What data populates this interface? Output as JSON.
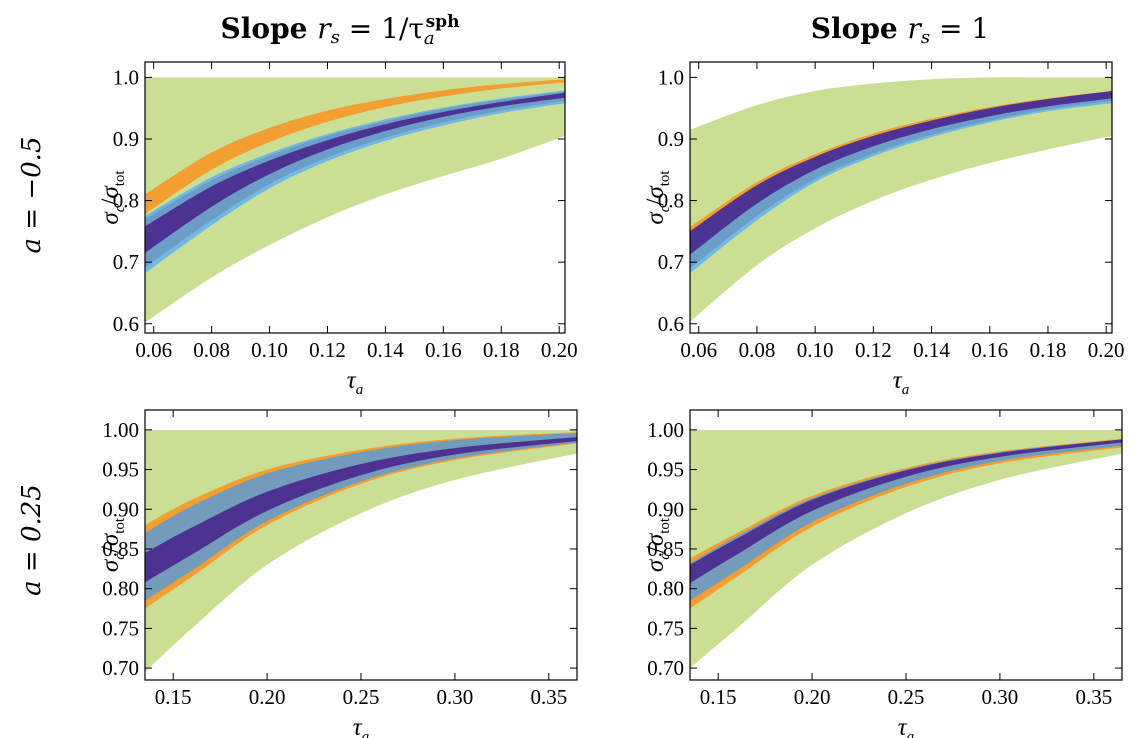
{
  "column_titles": [
    {
      "prefix": "Slope ",
      "expr": "r",
      "expr_sub": "s",
      "eq": " = 1/τ",
      "sub": "a",
      "sup": "sph"
    },
    {
      "prefix": "Slope ",
      "expr": "r",
      "expr_sub": "s",
      "eq": " = 1",
      "sub": "",
      "sup": ""
    }
  ],
  "row_labels": [
    "a = −0.5",
    "a = 0.25"
  ],
  "colors": {
    "green": "#c8dd8e",
    "orange": "#f39a2a",
    "lightblue": "#6cb5e8",
    "steelblue": "#6a9bc4",
    "purple": "#4b2c8f"
  },
  "chart_data": [
    {
      "type": "area",
      "panel": "a=-0.5, slope 1/tau_a^sph",
      "xlabel": "τ_a",
      "ylabel": "σ_c/σ_tot",
      "xlim": [
        0.057,
        0.202
      ],
      "ylim": [
        0.585,
        1.025
      ],
      "xticks": [
        "0.06",
        "0.08",
        "0.10",
        "0.12",
        "0.14",
        "0.16",
        "0.18",
        "0.20"
      ],
      "yticks": [
        "0.6",
        "0.7",
        "0.8",
        "0.9",
        "1.0"
      ],
      "x": [
        0.057,
        0.08,
        0.1,
        0.12,
        0.14,
        0.16,
        0.18,
        0.202
      ],
      "bands": [
        {
          "color": "green",
          "lower": [
            0.602,
            0.675,
            0.728,
            0.773,
            0.81,
            0.84,
            0.868,
            0.905
          ],
          "upper": [
            1.0,
            1.0,
            1.0,
            1.0,
            1.0,
            1.0,
            1.0,
            1.0
          ]
        },
        {
          "color": "orange",
          "lower": [
            0.778,
            0.85,
            0.895,
            0.928,
            0.952,
            0.969,
            0.982,
            0.992
          ],
          "upper": [
            0.81,
            0.878,
            0.918,
            0.946,
            0.965,
            0.979,
            0.989,
            0.997
          ]
        },
        {
          "color": "lightblue",
          "lower": [
            0.682,
            0.76,
            0.82,
            0.864,
            0.897,
            0.922,
            0.942,
            0.958
          ],
          "upper": [
            0.775,
            0.838,
            0.877,
            0.908,
            0.932,
            0.951,
            0.966,
            0.979
          ]
        },
        {
          "color": "steelblue",
          "lower": [
            0.692,
            0.768,
            0.827,
            0.87,
            0.902,
            0.927,
            0.946,
            0.962
          ],
          "upper": [
            0.77,
            0.833,
            0.873,
            0.905,
            0.929,
            0.949,
            0.964,
            0.977
          ]
        },
        {
          "color": "purple",
          "lower": [
            0.715,
            0.79,
            0.843,
            0.883,
            0.913,
            0.936,
            0.953,
            0.967
          ],
          "upper": [
            0.758,
            0.823,
            0.865,
            0.898,
            0.924,
            0.944,
            0.96,
            0.975
          ]
        }
      ]
    },
    {
      "type": "area",
      "panel": "a=-0.5, slope 1",
      "xlabel": "τ_a",
      "ylabel": "σ_c/σ_tot",
      "xlim": [
        0.057,
        0.202
      ],
      "ylim": [
        0.585,
        1.025
      ],
      "xticks": [
        "0.06",
        "0.08",
        "0.10",
        "0.12",
        "0.14",
        "0.16",
        "0.18",
        "0.20"
      ],
      "yticks": [
        "0.6",
        "0.7",
        "0.8",
        "0.9",
        "1.0"
      ],
      "x": [
        0.057,
        0.08,
        0.1,
        0.12,
        0.14,
        0.16,
        0.18,
        0.202
      ],
      "bands": [
        {
          "color": "green",
          "lower": [
            0.603,
            0.695,
            0.755,
            0.8,
            0.834,
            0.861,
            0.883,
            0.905
          ],
          "upper": [
            0.915,
            0.955,
            0.978,
            0.99,
            0.997,
            1.0,
            1.0,
            1.0
          ]
        },
        {
          "color": "orange",
          "lower": [
            0.745,
            0.82,
            0.867,
            0.902,
            0.928,
            0.948,
            0.963,
            0.975
          ],
          "upper": [
            0.757,
            0.83,
            0.875,
            0.909,
            0.933,
            0.952,
            0.966,
            0.978
          ]
        },
        {
          "color": "lightblue",
          "lower": [
            0.682,
            0.768,
            0.83,
            0.872,
            0.903,
            0.927,
            0.945,
            0.958
          ],
          "upper": [
            0.744,
            0.822,
            0.869,
            0.903,
            0.929,
            0.949,
            0.964,
            0.977
          ]
        },
        {
          "color": "steelblue",
          "lower": [
            0.69,
            0.775,
            0.835,
            0.876,
            0.907,
            0.93,
            0.948,
            0.962
          ],
          "upper": [
            0.742,
            0.82,
            0.867,
            0.901,
            0.927,
            0.947,
            0.963,
            0.976
          ]
        },
        {
          "color": "purple",
          "lower": [
            0.712,
            0.795,
            0.85,
            0.888,
            0.916,
            0.937,
            0.953,
            0.966
          ],
          "upper": [
            0.75,
            0.825,
            0.871,
            0.905,
            0.93,
            0.95,
            0.965,
            0.978
          ]
        }
      ]
    },
    {
      "type": "area",
      "panel": "a=0.25, slope 1/tau_a^sph",
      "xlabel": "τ_a",
      "ylabel": "σ_c/σ_tot",
      "xlim": [
        0.135,
        0.365
      ],
      "ylim": [
        0.685,
        1.025
      ],
      "xticks": [
        "0.15",
        "0.20",
        "0.25",
        "0.30",
        "0.35"
      ],
      "yticks": [
        "0.70",
        "0.75",
        "0.80",
        "0.85",
        "0.90",
        "0.95",
        "1.00"
      ],
      "x": [
        0.135,
        0.16,
        0.2,
        0.25,
        0.3,
        0.365
      ],
      "bands": [
        {
          "color": "green",
          "lower": [
            0.695,
            0.75,
            0.83,
            0.895,
            0.937,
            0.97
          ],
          "upper": [
            1.0,
            1.0,
            1.0,
            1.0,
            1.0,
            1.0
          ]
        },
        {
          "color": "orange",
          "lower": [
            0.775,
            0.815,
            0.88,
            0.932,
            0.962,
            0.983
          ],
          "upper": [
            0.88,
            0.912,
            0.95,
            0.975,
            0.989,
            0.997
          ]
        },
        {
          "color": "steelblue",
          "lower": [
            0.785,
            0.823,
            0.885,
            0.935,
            0.964,
            0.984
          ],
          "upper": [
            0.87,
            0.904,
            0.945,
            0.972,
            0.987,
            0.996
          ]
        },
        {
          "color": "purple",
          "lower": [
            0.808,
            0.843,
            0.898,
            0.943,
            0.969,
            0.986
          ],
          "upper": [
            0.845,
            0.877,
            0.922,
            0.957,
            0.977,
            0.991
          ]
        }
      ]
    },
    {
      "type": "area",
      "panel": "a=0.25, slope 1",
      "xlabel": "τ_a",
      "ylabel": "σ_c/σ_tot",
      "xlim": [
        0.135,
        0.365
      ],
      "ylim": [
        0.685,
        1.025
      ],
      "xticks": [
        "0.15",
        "0.20",
        "0.25",
        "0.30",
        "0.35"
      ],
      "yticks": [
        "0.70",
        "0.75",
        "0.80",
        "0.85",
        "0.90",
        "0.95",
        "1.00"
      ],
      "x": [
        0.135,
        0.16,
        0.2,
        0.25,
        0.3,
        0.365
      ],
      "bands": [
        {
          "color": "green",
          "lower": [
            0.7,
            0.75,
            0.83,
            0.895,
            0.937,
            0.97
          ],
          "upper": [
            1.0,
            1.0,
            1.0,
            1.0,
            1.0,
            1.0
          ]
        },
        {
          "color": "orange",
          "lower": [
            0.775,
            0.815,
            0.878,
            0.928,
            0.958,
            0.978
          ],
          "upper": [
            0.838,
            0.87,
            0.917,
            0.952,
            0.973,
            0.989
          ]
        },
        {
          "color": "steelblue",
          "lower": [
            0.785,
            0.823,
            0.884,
            0.932,
            0.961,
            0.98
          ],
          "upper": [
            0.832,
            0.866,
            0.914,
            0.95,
            0.972,
            0.988
          ]
        },
        {
          "color": "purple",
          "lower": [
            0.807,
            0.843,
            0.898,
            0.941,
            0.966,
            0.984
          ],
          "upper": [
            0.83,
            0.863,
            0.912,
            0.949,
            0.971,
            0.988
          ]
        }
      ]
    }
  ]
}
